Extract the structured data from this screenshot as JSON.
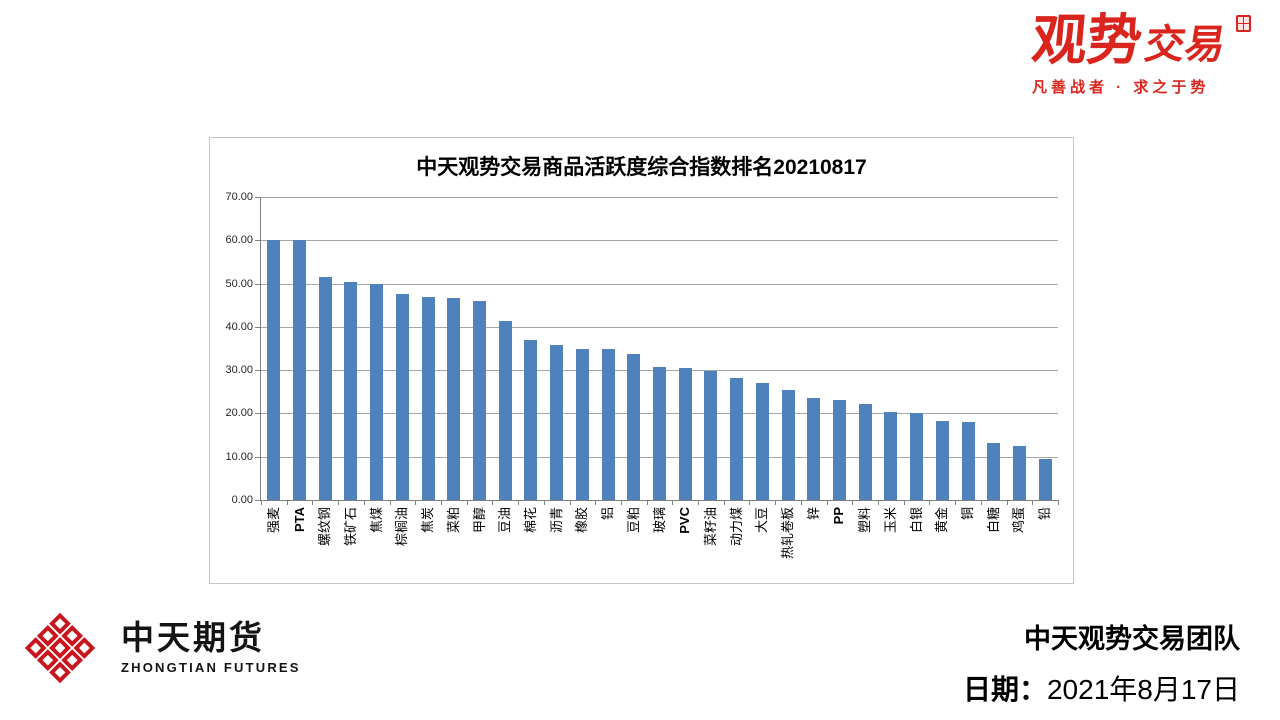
{
  "brand": {
    "main": "观势",
    "sub": "交易",
    "tagline": "凡善战者 · 求之于势",
    "color": "#d9251d"
  },
  "chart_data": {
    "type": "bar",
    "title": "中天观势交易商品活跃度综合指数排名20210817",
    "categories": [
      "强麦",
      "PTA",
      "螺纹钢",
      "铁矿石",
      "焦煤",
      "棕榈油",
      "焦炭",
      "菜粕",
      "甲醇",
      "豆油",
      "棉花",
      "沥青",
      "橡胶",
      "铝",
      "豆粕",
      "玻璃",
      "PVC",
      "菜籽油",
      "动力煤",
      "大豆",
      "热轧卷板",
      "锌",
      "PP",
      "塑料",
      "玉米",
      "白银",
      "黄金",
      "铜",
      "白糖",
      "鸡蛋",
      "铅"
    ],
    "values": [
      60.0,
      60.0,
      51.5,
      50.4,
      50.0,
      47.5,
      47.0,
      46.7,
      45.9,
      41.4,
      36.9,
      35.8,
      35.0,
      34.8,
      33.7,
      30.7,
      30.4,
      29.8,
      28.2,
      27.0,
      25.5,
      23.5,
      23.2,
      22.2,
      20.4,
      20.0,
      18.2,
      18.0,
      13.2,
      12.4,
      9.4
    ],
    "bold_categories": [
      "PTA",
      "PVC",
      "PP"
    ],
    "xlabel": "",
    "ylabel": "",
    "ylim": [
      0,
      70
    ],
    "ytick_interval": 10,
    "ytick_labels": [
      "70.00",
      "60.00",
      "50.00",
      "40.00",
      "30.00",
      "20.00",
      "10.00",
      "0.00"
    ],
    "bar_color": "#4f81bd",
    "grid": true,
    "legend": "none"
  },
  "footer": {
    "company_cn": "中天期货",
    "company_en": "ZHONGTIAN FUTURES",
    "logo_color": "#c9161e",
    "team": "中天观势交易团队",
    "date_label": "日期：",
    "date_value": "2021年8月17日"
  }
}
